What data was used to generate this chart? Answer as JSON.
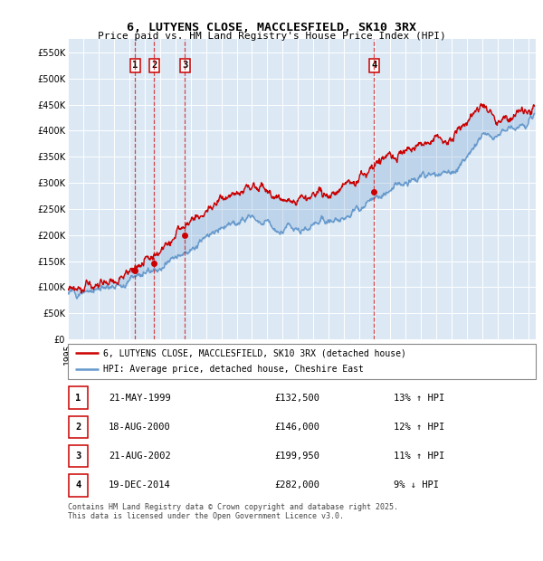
{
  "title": "6, LUTYENS CLOSE, MACCLESFIELD, SK10 3RX",
  "subtitle": "Price paid vs. HM Land Registry's House Price Index (HPI)",
  "plot_bg_color": "#dce9f5",
  "ylim": [
    0,
    575000
  ],
  "yticks": [
    0,
    50000,
    100000,
    150000,
    200000,
    250000,
    300000,
    350000,
    400000,
    450000,
    500000,
    550000
  ],
  "xlim_start": 1995.0,
  "xlim_end": 2025.5,
  "sale_dates_decimal": [
    1999.38,
    2000.63,
    2002.63,
    2014.96
  ],
  "sale_prices": [
    132500,
    146000,
    199950,
    282000
  ],
  "sale_labels": [
    "1",
    "2",
    "3",
    "4"
  ],
  "red_line_color": "#cc0000",
  "blue_line_color": "#6699cc",
  "blue_fill_color": "#c5d9ee",
  "legend_line1": "6, LUTYENS CLOSE, MACCLESFIELD, SK10 3RX (detached house)",
  "legend_line2": "HPI: Average price, detached house, Cheshire East",
  "table_data": [
    {
      "label": "1",
      "date": "21-MAY-1999",
      "price": "£132,500",
      "hpi": "13% ↑ HPI"
    },
    {
      "label": "2",
      "date": "18-AUG-2000",
      "price": "£146,000",
      "hpi": "12% ↑ HPI"
    },
    {
      "label": "3",
      "date": "21-AUG-2002",
      "price": "£199,950",
      "hpi": "11% ↑ HPI"
    },
    {
      "label": "4",
      "date": "19-DEC-2014",
      "price": "£282,000",
      "hpi": "9% ↓ HPI"
    }
  ],
  "footer": "Contains HM Land Registry data © Crown copyright and database right 2025.\nThis data is licensed under the Open Government Licence v3.0."
}
